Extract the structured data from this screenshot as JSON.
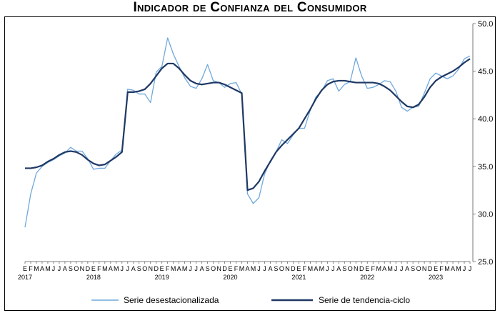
{
  "chart_data": {
    "type": "line",
    "title": "Indicador de Confianza del Consumidor",
    "xlabel": "",
    "ylabel": "",
    "ylim": [
      25.0,
      50.0
    ],
    "yticks": [
      "25.0",
      "30.0",
      "35.0",
      "40.0",
      "45.0",
      "50.0"
    ],
    "y_axis_position": "right",
    "grid": false,
    "legend_position": "bottom",
    "x_start": "2017-01",
    "month_letters": [
      "E",
      "F",
      "M",
      "A",
      "M",
      "J",
      "J",
      "A",
      "S",
      "O",
      "N",
      "D"
    ],
    "years": [
      "2017",
      "2018",
      "2019",
      "2020",
      "2021",
      "2022",
      "2023"
    ],
    "colors": {
      "desestacionalizada": "#6fa8dc",
      "tendencia": "#1f3864"
    },
    "series": [
      {
        "name": "Serie desestacionalizada",
        "values": [
          28.6,
          32.1,
          34.3,
          35.0,
          35.4,
          35.7,
          36.1,
          36.4,
          37.0,
          36.6,
          36.6,
          35.8,
          34.7,
          34.8,
          34.8,
          35.6,
          36.3,
          36.7,
          43.1,
          43.0,
          42.6,
          42.6,
          41.7,
          44.9,
          45.5,
          48.5,
          46.8,
          45.5,
          44.3,
          43.4,
          43.2,
          44.2,
          45.7,
          44.0,
          43.8,
          43.3,
          43.7,
          43.8,
          42.6,
          32.1,
          31.1,
          31.7,
          34.2,
          35.6,
          36.5,
          37.8,
          37.4,
          38.3,
          39.0,
          39.0,
          40.9,
          42.3,
          42.9,
          44.0,
          44.2,
          42.9,
          43.6,
          43.9,
          46.4,
          44.5,
          43.2,
          43.3,
          43.6,
          44.0,
          43.9,
          42.9,
          41.2,
          40.8,
          41.2,
          41.3,
          42.7,
          44.2,
          44.8,
          44.5,
          44.2,
          44.5,
          45.2,
          46.3,
          46.6
        ]
      },
      {
        "name": "Serie de tendencia-ciclo",
        "values": [
          34.8,
          34.8,
          34.9,
          35.1,
          35.5,
          35.8,
          36.2,
          36.5,
          36.6,
          36.5,
          36.2,
          35.7,
          35.3,
          35.1,
          35.2,
          35.6,
          36.0,
          36.5,
          42.8,
          42.8,
          42.9,
          43.1,
          43.7,
          44.5,
          45.3,
          45.8,
          45.8,
          45.3,
          44.6,
          44.0,
          43.7,
          43.6,
          43.7,
          43.8,
          43.8,
          43.6,
          43.3,
          43.0,
          42.7,
          32.5,
          32.7,
          33.4,
          34.5,
          35.5,
          36.5,
          37.2,
          37.8,
          38.4,
          39.0,
          40.0,
          41.0,
          42.1,
          43.0,
          43.6,
          43.9,
          44.0,
          44.0,
          43.9,
          43.8,
          43.8,
          43.8,
          43.8,
          43.7,
          43.4,
          43.0,
          42.4,
          41.8,
          41.3,
          41.2,
          41.5,
          42.3,
          43.3,
          44.0,
          44.4,
          44.7,
          45.0,
          45.4,
          45.9,
          46.3
        ]
      }
    ]
  }
}
